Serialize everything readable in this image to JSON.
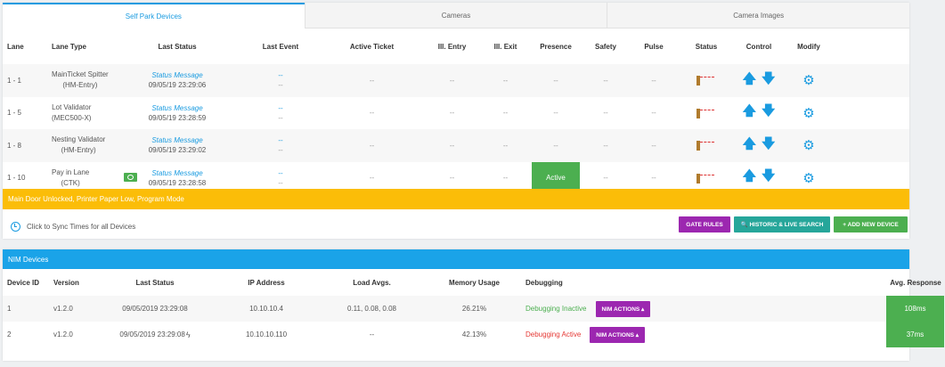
{
  "tabs": [
    {
      "label": "Self Park Devices",
      "active": true
    },
    {
      "label": "Cameras",
      "active": false
    },
    {
      "label": "Camera Images",
      "active": false
    }
  ],
  "lane_table": {
    "headers": [
      "Lane",
      "Lane Type",
      "Last Status",
      "Last Event",
      "Active Ticket",
      "Ill. Entry",
      "Ill. Exit",
      "Presence",
      "Safety",
      "Pulse",
      "Status",
      "Control",
      "Modify"
    ],
    "rows": [
      {
        "lane": "1 - 1",
        "type_name": "MainTicket Spitter",
        "type_sub": "(HM-Entry)",
        "status_msg": "Status Message",
        "status_time": "09/05/19 23:29:06",
        "event1": "--",
        "event2": "--",
        "ticket": "--",
        "ill_entry": "--",
        "ill_exit": "--",
        "presence": "--",
        "safety": "--",
        "pulse": "--"
      },
      {
        "lane": "1 - 5",
        "type_name": "Lot Validator",
        "type_sub": "(MEC500-X)",
        "status_msg": "Status Message",
        "status_time": "09/05/19 23:28:59",
        "event1": "--",
        "event2": "--",
        "ticket": "--",
        "ill_entry": "--",
        "ill_exit": "--",
        "presence": "--",
        "safety": "--",
        "pulse": "--"
      },
      {
        "lane": "1 - 8",
        "type_name": "Nesting Validator",
        "type_sub": "(HM-Entry)",
        "status_msg": "Status Message",
        "status_time": "09/05/19 23:29:02",
        "event1": "--",
        "event2": "--",
        "ticket": "--",
        "ill_entry": "--",
        "ill_exit": "--",
        "presence": "--",
        "safety": "--",
        "pulse": "--"
      },
      {
        "lane": "1 - 10",
        "type_name": "Pay in Lane",
        "type_sub": "(CTK)",
        "status_msg": "Status Message",
        "status_time": "09/05/19 23:28:58",
        "event1": "--",
        "event2": "--",
        "ticket": "--",
        "ill_entry": "--",
        "ill_exit": "--",
        "presence": "Active",
        "safety": "--",
        "pulse": "--"
      }
    ]
  },
  "alert": "Main Door Unlocked, Printer Paper Low, Program Mode",
  "sync_label": "Click to Sync Times for all Devices",
  "buttons": {
    "gate_rules": "GATE RULES",
    "historic": "🔍 HISTORIC & LIVE SEARCH",
    "add_device": "+ ADD NEW DEVICE"
  },
  "nim": {
    "title": "NIM Devices",
    "headers": [
      "Device ID",
      "Version",
      "Last Status",
      "IP Address",
      "Load Avgs.",
      "Memory Usage",
      "Debugging",
      "Avg. Response"
    ],
    "rows": [
      {
        "id": "1",
        "version": "v1.2.0",
        "last_status": "09/05/2019 23:29:08",
        "ip": "10.10.10.4",
        "load": "0.11, 0.08, 0.08",
        "memory": "26.21%",
        "debugging": "Debugging Inactive",
        "actions": "NIM ACTIONS ▴",
        "response": "108ms"
      },
      {
        "id": "2",
        "version": "v1.2.0",
        "last_status": "09/05/2019 23:29:08",
        "ip": "10.10.10.110",
        "load": "--",
        "memory": "42.13%",
        "debugging": "Debugging Active",
        "actions": "NIM ACTIONS ▴",
        "response": "37ms"
      }
    ]
  },
  "colors": {
    "accent": "#1a9be0",
    "alert": "#fbbd08",
    "ok": "#4caf50",
    "purple": "#9c27b0",
    "teal": "#26a69a",
    "error": "#e53935"
  },
  "icons": {
    "control_up": "arrow-up-icon",
    "control_down": "arrow-down-icon",
    "modify": "gear-icon",
    "status": "gate-icon",
    "cash": "cash-icon",
    "sync": "clock-icon",
    "bolt": "lightning-icon"
  }
}
